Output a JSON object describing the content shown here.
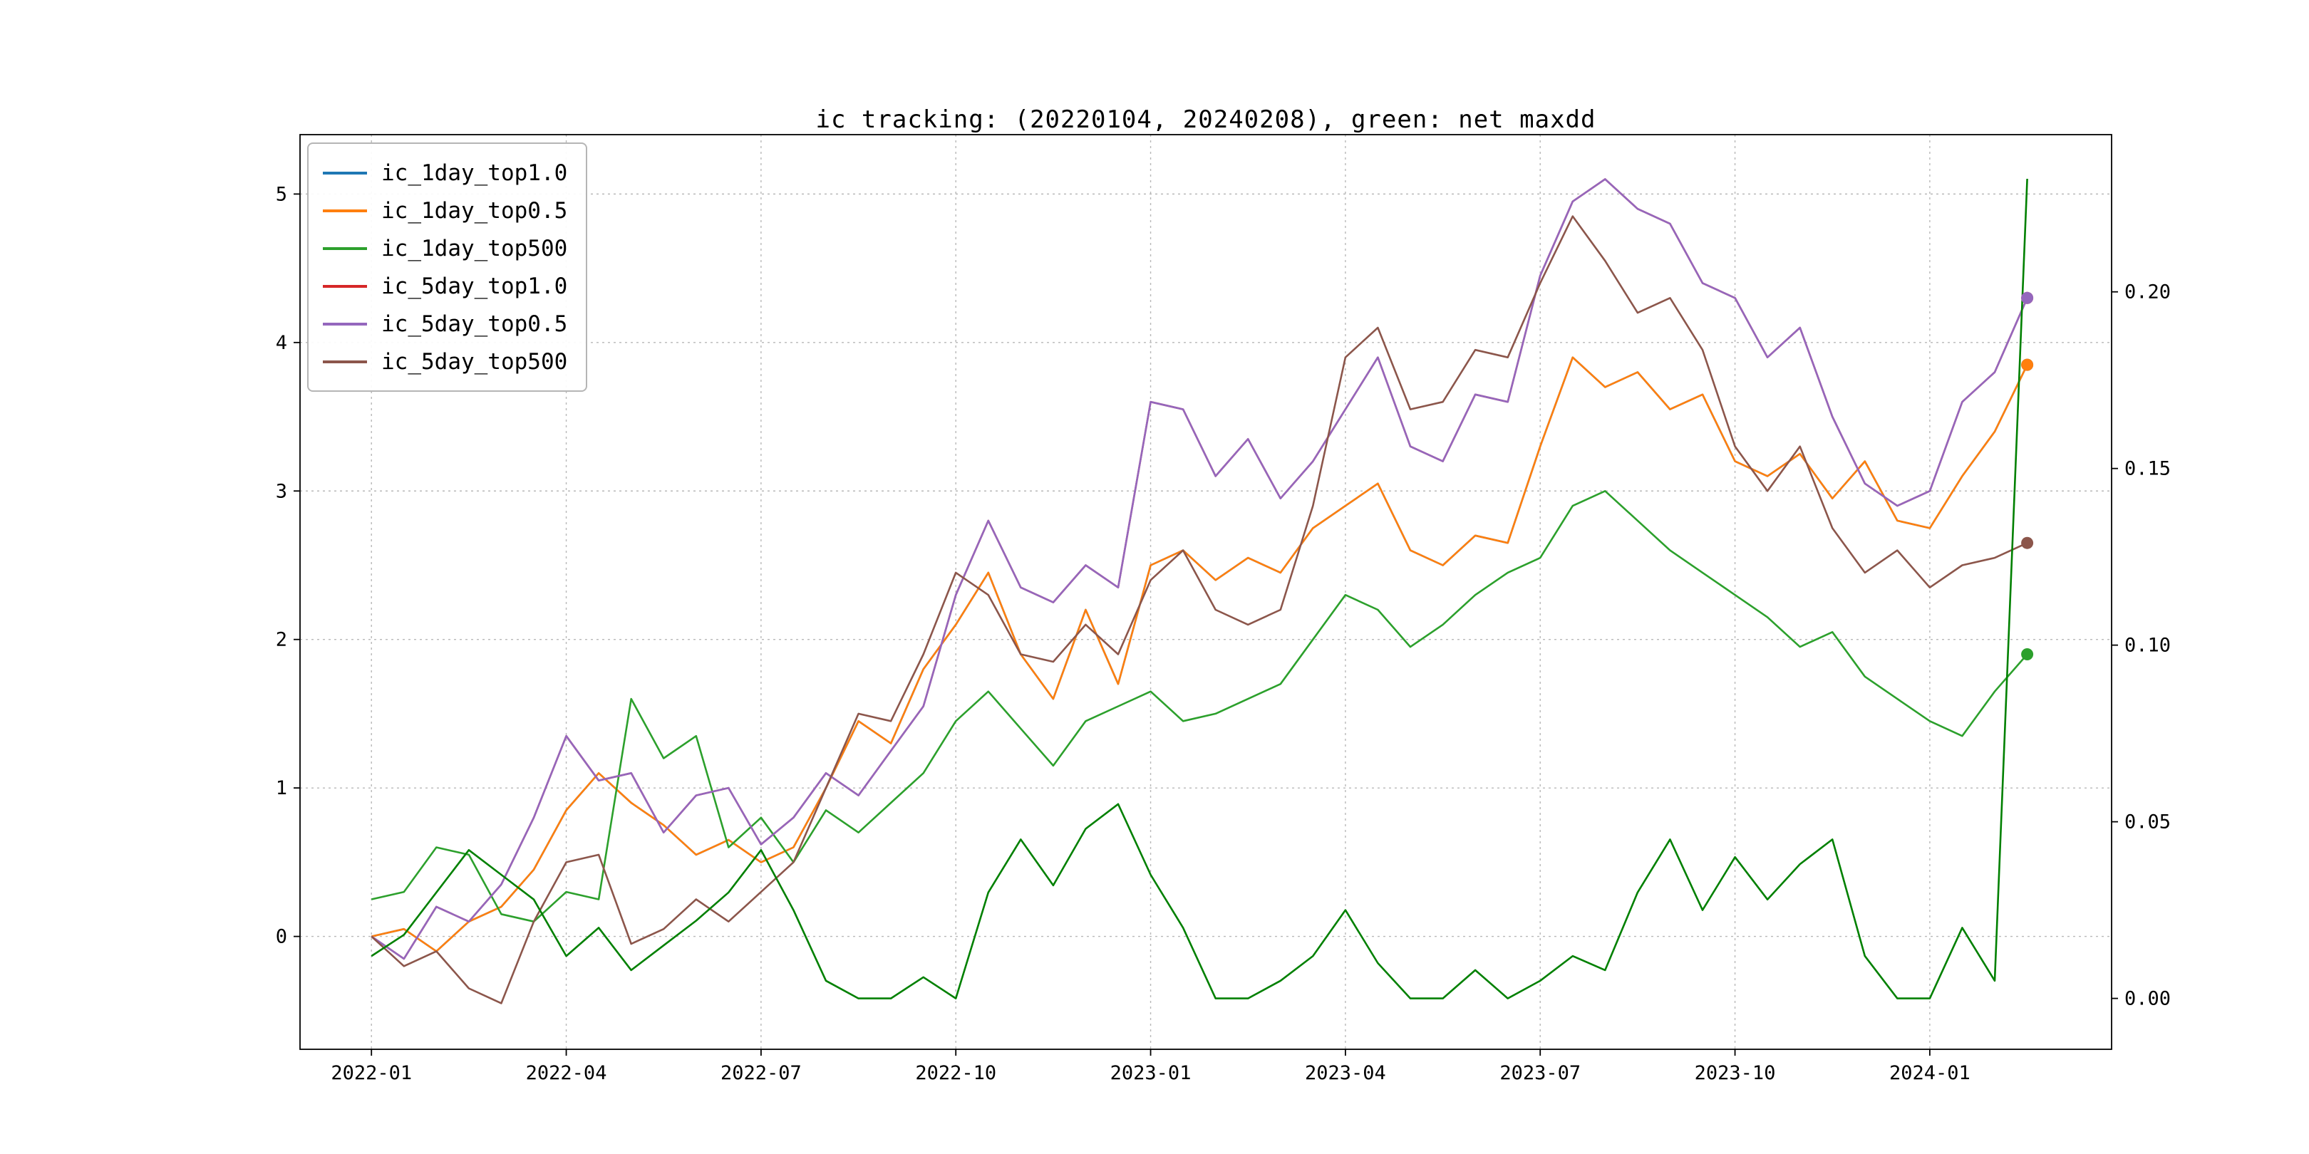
{
  "figure": {
    "title": "ic tracking: (20220104, 20240208), green: net maxdd"
  },
  "chart_data": {
    "type": "line",
    "title": "ic tracking: (20220104, 20240208), green: net maxdd",
    "grid": true,
    "legend_position": "upper-left",
    "x_axis": {
      "unit": "months since 2022-01",
      "xlim": [
        -1.1,
        26.8
      ],
      "tick_positions": [
        0,
        3,
        6,
        9,
        12,
        15,
        18,
        21,
        24
      ],
      "tick_labels": [
        "2022-01",
        "2022-04",
        "2022-07",
        "2022-10",
        "2023-01",
        "2023-04",
        "2023-07",
        "2023-10",
        "2024-01"
      ]
    },
    "left_y_axis": {
      "ylim": [
        -0.76,
        5.4
      ],
      "tick_values": [
        0,
        1,
        2,
        3,
        4,
        5
      ],
      "tick_labels": [
        "0",
        "1",
        "2",
        "3",
        "4",
        "5"
      ]
    },
    "right_y_axis": {
      "ylim": [
        -0.0144,
        0.2445
      ],
      "tick_values": [
        0.0,
        0.05,
        0.1,
        0.15,
        0.2
      ],
      "tick_labels": [
        "0.00",
        "0.05",
        "0.10",
        "0.15",
        "0.20"
      ]
    },
    "x_step_months": 0.5,
    "series": [
      {
        "name": "ic_1day_top1.0",
        "color": "#1f77b4",
        "axis": "left",
        "legend": true,
        "end_marker": true,
        "values": [
          0.0,
          0.05,
          -0.1,
          0.1,
          0.2,
          0.45,
          0.85,
          1.1,
          0.9,
          0.75,
          0.55,
          0.65,
          0.5,
          0.6,
          1.0,
          1.45,
          1.3,
          1.8,
          2.1,
          2.45,
          1.9,
          1.6,
          2.2,
          1.7,
          2.5,
          2.6,
          2.4,
          2.55,
          2.45,
          2.75,
          2.9,
          3.05,
          2.6,
          2.5,
          2.7,
          2.65,
          3.3,
          3.9,
          3.7,
          3.8,
          3.55,
          3.65,
          3.2,
          3.1,
          3.25,
          2.95,
          3.2,
          2.8,
          2.75,
          3.1,
          3.4,
          3.85
        ]
      },
      {
        "name": "ic_1day_top0.5",
        "color": "#ff7f0e",
        "axis": "left",
        "legend": true,
        "end_marker": true,
        "values": [
          0.0,
          0.05,
          -0.1,
          0.1,
          0.2,
          0.45,
          0.85,
          1.1,
          0.9,
          0.75,
          0.55,
          0.65,
          0.5,
          0.6,
          1.0,
          1.45,
          1.3,
          1.8,
          2.1,
          2.45,
          1.9,
          1.6,
          2.2,
          1.7,
          2.5,
          2.6,
          2.4,
          2.55,
          2.45,
          2.75,
          2.9,
          3.05,
          2.6,
          2.5,
          2.7,
          2.65,
          3.3,
          3.9,
          3.7,
          3.8,
          3.55,
          3.65,
          3.2,
          3.1,
          3.25,
          2.95,
          3.2,
          2.8,
          2.75,
          3.1,
          3.4,
          3.85
        ]
      },
      {
        "name": "ic_1day_top500",
        "color": "#2ca02c",
        "axis": "left",
        "legend": true,
        "end_marker": true,
        "values": [
          0.25,
          0.3,
          0.6,
          0.55,
          0.15,
          0.1,
          0.3,
          0.25,
          1.6,
          1.2,
          1.35,
          0.6,
          0.8,
          0.5,
          0.85,
          0.7,
          0.9,
          1.1,
          1.45,
          1.65,
          1.4,
          1.15,
          1.45,
          1.55,
          1.65,
          1.45,
          1.5,
          1.6,
          1.7,
          2.0,
          2.3,
          2.2,
          1.95,
          2.1,
          2.3,
          2.45,
          2.55,
          2.9,
          3.0,
          2.8,
          2.6,
          2.45,
          2.3,
          2.15,
          1.95,
          2.05,
          1.75,
          1.6,
          1.45,
          1.35,
          1.65,
          1.9
        ]
      },
      {
        "name": "ic_5day_top1.0",
        "color": "#d62728",
        "axis": "left",
        "legend": true,
        "end_marker": true,
        "values": [
          0.0,
          -0.15,
          0.2,
          0.1,
          0.35,
          0.8,
          1.35,
          1.05,
          1.1,
          0.7,
          0.95,
          1.0,
          0.62,
          0.8,
          1.1,
          0.95,
          1.25,
          1.55,
          2.3,
          2.8,
          2.35,
          2.25,
          2.5,
          2.35,
          3.6,
          3.55,
          3.1,
          3.35,
          2.95,
          3.2,
          3.55,
          3.9,
          3.3,
          3.2,
          3.65,
          3.6,
          4.45,
          4.95,
          5.1,
          4.9,
          4.8,
          4.4,
          4.3,
          3.9,
          4.1,
          3.5,
          3.05,
          2.9,
          3.0,
          3.6,
          3.8,
          4.3
        ]
      },
      {
        "name": "ic_5day_top0.5",
        "color": "#9467bd",
        "axis": "left",
        "legend": true,
        "end_marker": true,
        "values": [
          0.0,
          -0.15,
          0.2,
          0.1,
          0.35,
          0.8,
          1.35,
          1.05,
          1.1,
          0.7,
          0.95,
          1.0,
          0.62,
          0.8,
          1.1,
          0.95,
          1.25,
          1.55,
          2.3,
          2.8,
          2.35,
          2.25,
          2.5,
          2.35,
          3.6,
          3.55,
          3.1,
          3.35,
          2.95,
          3.2,
          3.55,
          3.9,
          3.3,
          3.2,
          3.65,
          3.6,
          4.45,
          4.95,
          5.1,
          4.9,
          4.8,
          4.4,
          4.3,
          3.9,
          4.1,
          3.5,
          3.05,
          2.9,
          3.0,
          3.6,
          3.8,
          4.3
        ]
      },
      {
        "name": "ic_5day_top500",
        "color": "#8c564b",
        "axis": "left",
        "legend": true,
        "end_marker": true,
        "values": [
          0.0,
          -0.2,
          -0.1,
          -0.35,
          -0.45,
          0.1,
          0.5,
          0.55,
          -0.05,
          0.05,
          0.25,
          0.1,
          0.3,
          0.5,
          1.0,
          1.5,
          1.45,
          1.9,
          2.45,
          2.3,
          1.9,
          1.85,
          2.1,
          1.9,
          2.4,
          2.6,
          2.2,
          2.1,
          2.2,
          2.9,
          3.9,
          4.1,
          3.55,
          3.6,
          3.95,
          3.9,
          4.4,
          4.85,
          4.55,
          4.2,
          4.3,
          3.95,
          3.3,
          3.0,
          3.3,
          2.75,
          2.45,
          2.6,
          2.35,
          2.5,
          2.55,
          2.65
        ]
      },
      {
        "name": "net maxdd",
        "color": "#008000",
        "axis": "right",
        "legend": false,
        "end_marker": false,
        "values": [
          0.012,
          0.018,
          0.03,
          0.042,
          0.035,
          0.028,
          0.012,
          0.02,
          0.008,
          0.015,
          0.022,
          0.03,
          0.042,
          0.025,
          0.005,
          0.0,
          0.0,
          0.006,
          0.0,
          0.03,
          0.045,
          0.032,
          0.048,
          0.055,
          0.035,
          0.02,
          0.0,
          0.0,
          0.005,
          0.012,
          0.025,
          0.01,
          0.0,
          0.0,
          0.008,
          0.0,
          0.005,
          0.012,
          0.008,
          0.03,
          0.045,
          0.025,
          0.04,
          0.028,
          0.038,
          0.045,
          0.012,
          0.0,
          0.0,
          0.02,
          0.005,
          0.232
        ]
      }
    ]
  }
}
